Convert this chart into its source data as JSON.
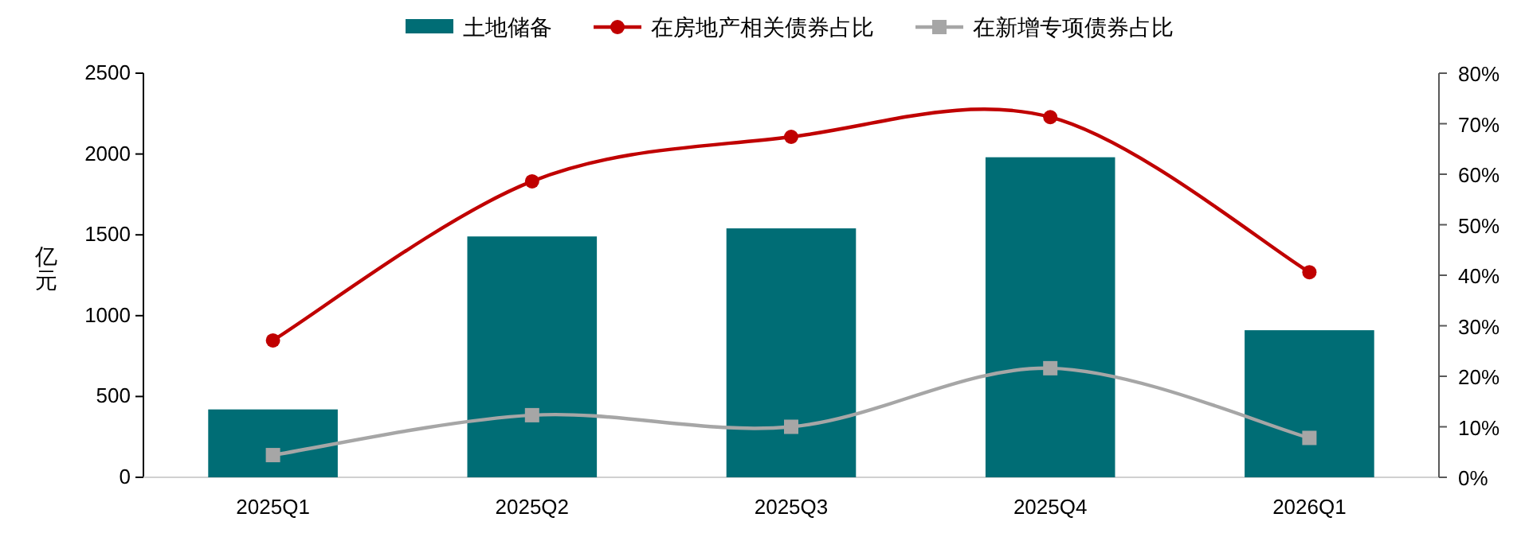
{
  "chart_data": {
    "type": "bar",
    "categories": [
      "2025Q1",
      "2025Q2",
      "2025Q3",
      "2025Q4",
      "2026Q1"
    ],
    "ylabel": "亿元",
    "series": [
      {
        "name": "土地储备",
        "color": "#006d75",
        "values": [
          420,
          1490,
          1540,
          1980,
          910
        ]
      },
      {
        "name": "在房地产相关债券占比",
        "type": "line",
        "axis": "y2",
        "color": "#c00000",
        "marker": "circle",
        "values": [
          27.1,
          58.6,
          67.4,
          71.3,
          40.6
        ]
      },
      {
        "name": "在新增专项债券占比",
        "type": "line",
        "axis": "y2",
        "color": "#a6a6a6",
        "marker": "square",
        "values": [
          4.4,
          12.3,
          10.0,
          21.6,
          7.8
        ]
      }
    ],
    "ylim": [
      0,
      2500
    ],
    "yticks": [
      0,
      500,
      1000,
      1500,
      2000,
      2500
    ],
    "y2lim": [
      0,
      80
    ],
    "y2ticks": [
      {
        "value": 0,
        "label": "0%"
      },
      {
        "value": 10,
        "label": "10%"
      },
      {
        "value": 20,
        "label": "20%"
      },
      {
        "value": 30,
        "label": "30%"
      },
      {
        "value": 40,
        "label": "40%"
      },
      {
        "value": 50,
        "label": "50%"
      },
      {
        "value": 60,
        "label": "60%"
      },
      {
        "value": 70,
        "label": "70%"
      },
      {
        "value": 80,
        "label": "80%"
      }
    ],
    "legend": "top",
    "grid": false
  }
}
